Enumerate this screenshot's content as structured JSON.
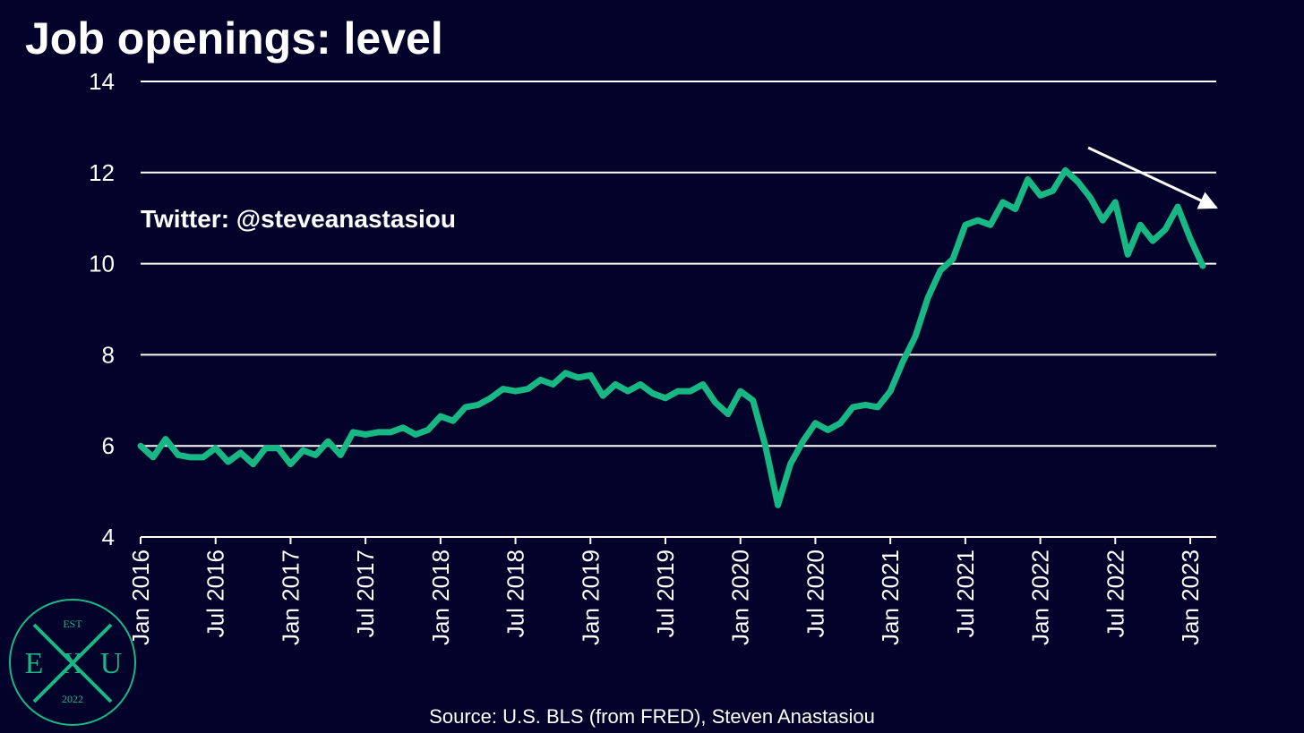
{
  "chart_data": {
    "type": "line",
    "title": "Job openings: level",
    "annotation": "Twitter: @steveanastasiou",
    "source": "Source: U.S. BLS (from FRED), Steven Anastasiou",
    "logo": {
      "top": "EST",
      "left": "E",
      "middle": "X",
      "right": "U",
      "bottom": "2022"
    },
    "categories": [
      "Jan 2016",
      null,
      null,
      null,
      null,
      null,
      "Jul 2016",
      null,
      null,
      null,
      null,
      null,
      "Jan 2017",
      null,
      null,
      null,
      null,
      null,
      "Jul 2017",
      null,
      null,
      null,
      null,
      null,
      "Jan 2018",
      null,
      null,
      null,
      null,
      null,
      "Jul 2018",
      null,
      null,
      null,
      null,
      null,
      "Jan 2019",
      null,
      null,
      null,
      null,
      null,
      "Jul 2019",
      null,
      null,
      null,
      null,
      null,
      "Jan 2020",
      null,
      null,
      null,
      null,
      null,
      "Jul 2020",
      null,
      null,
      null,
      null,
      null,
      "Jan 2021",
      null,
      null,
      null,
      null,
      null,
      "Jul 2021",
      null,
      null,
      null,
      null,
      null,
      "Jan 2022",
      null,
      null,
      null,
      null,
      null,
      "Jul 2022",
      null,
      null,
      null,
      null,
      null,
      "Jan 2023",
      null
    ],
    "series": [
      {
        "color": "#17b884",
        "values": [
          6.0,
          5.75,
          6.15,
          5.8,
          5.75,
          5.75,
          5.95,
          5.65,
          5.85,
          5.6,
          5.95,
          5.95,
          5.6,
          5.9,
          5.8,
          6.1,
          5.8,
          6.3,
          6.25,
          6.3,
          6.3,
          6.4,
          6.25,
          6.35,
          6.65,
          6.55,
          6.85,
          6.9,
          7.05,
          7.25,
          7.2,
          7.25,
          7.45,
          7.35,
          7.6,
          7.5,
          7.55,
          7.1,
          7.35,
          7.2,
          7.35,
          7.15,
          7.05,
          7.2,
          7.2,
          7.35,
          6.95,
          6.7,
          7.2,
          7.0,
          6.0,
          4.7,
          5.6,
          6.1,
          6.5,
          6.35,
          6.5,
          6.85,
          6.9,
          6.85,
          7.2,
          7.85,
          8.4,
          9.25,
          9.85,
          10.1,
          10.85,
          10.95,
          10.85,
          11.35,
          11.2,
          11.85,
          11.5,
          11.6,
          12.05,
          11.8,
          11.45,
          10.95,
          11.35,
          10.2,
          10.85,
          10.5,
          10.75,
          11.25,
          10.55,
          9.95
        ]
      }
    ],
    "ylim": [
      4,
      14
    ],
    "yticks": [
      4,
      6,
      8,
      10,
      12,
      14
    ],
    "grid": true
  }
}
